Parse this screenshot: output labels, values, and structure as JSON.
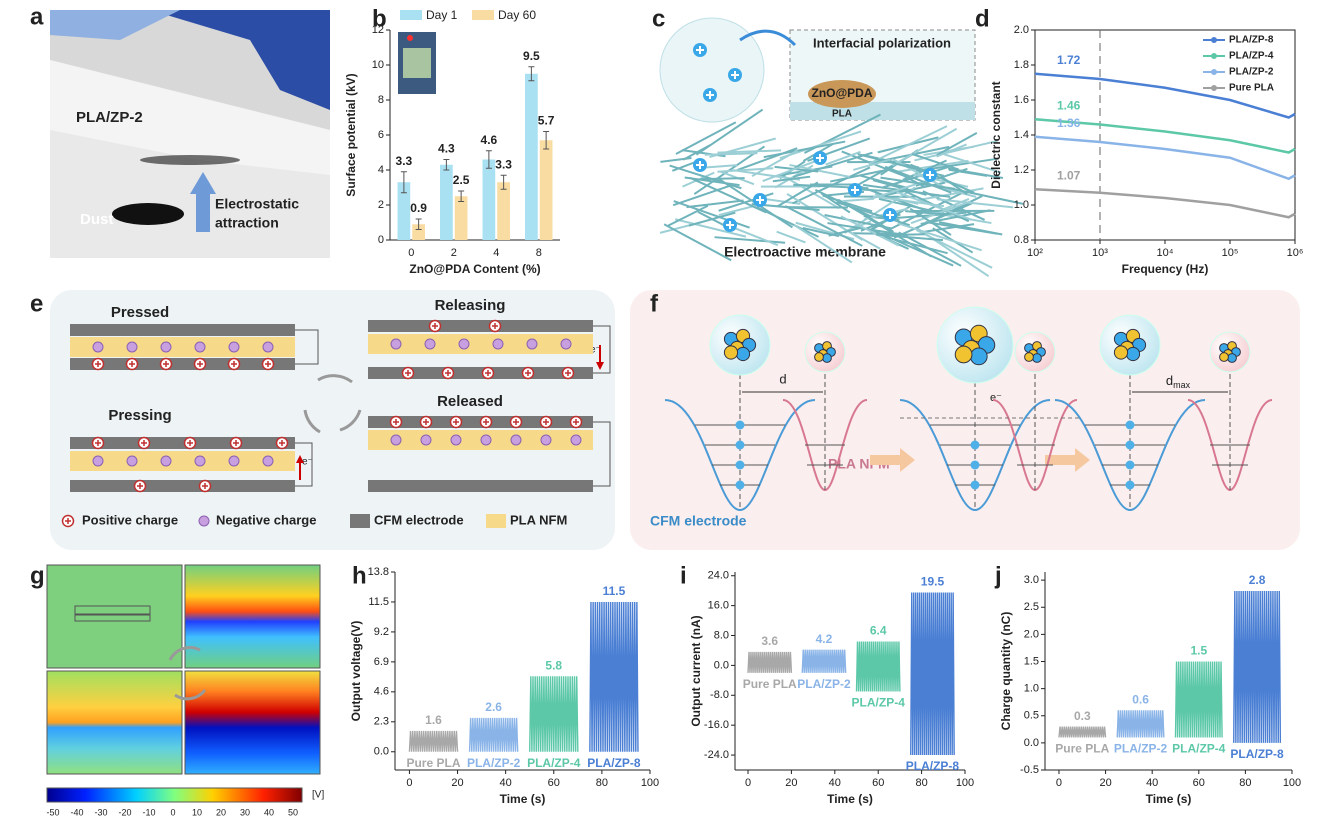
{
  "panel_labels": [
    "a",
    "b",
    "c",
    "d",
    "e",
    "f",
    "g",
    "h",
    "i",
    "j"
  ],
  "photo": {
    "sample": "PLA/ZP-2",
    "arrow_text": [
      "Electrostatic",
      "attraction"
    ],
    "dust": "Dust"
  },
  "membrane": {
    "title": "Interfacial polarization",
    "particle": "ZnO@PDA",
    "matrix": "PLA",
    "caption": "Electroactive membrane"
  },
  "cycle": {
    "states": [
      "Pressed",
      "Releasing",
      "Pressing",
      "Released"
    ],
    "electron": "e⁻",
    "legend": [
      "Positive charge",
      "Negative charge",
      "CFM electrode",
      "PLA NFM"
    ]
  },
  "energy": {
    "distance": "d",
    "distance_max": {
      "base": "d",
      "sub": "max"
    },
    "electron": "e⁻",
    "right_label": "PLA NFM",
    "left_label": "CFM electrode"
  },
  "potential_map": {
    "colorbar_ticks": [
      -50,
      -40,
      -30,
      -20,
      -10,
      0,
      10,
      20,
      30,
      40,
      50
    ],
    "unit": "[V]"
  },
  "chart_data": [
    {
      "type": "bar",
      "categories": [
        "0",
        "2",
        "4",
        "8"
      ],
      "series": [
        {
          "name": "Day 1",
          "color": "#a9e1f2",
          "values": [
            3.3,
            4.3,
            4.6,
            9.5
          ],
          "errors": [
            0.6,
            0.3,
            0.5,
            0.4
          ]
        },
        {
          "name": "Day 60",
          "color": "#f9dca2",
          "values": [
            0.9,
            2.5,
            3.3,
            5.7
          ],
          "errors": [
            0.3,
            0.3,
            0.4,
            0.5
          ]
        }
      ],
      "ylim": [
        0,
        12
      ],
      "yticks": [
        0,
        2,
        4,
        6,
        8,
        10,
        12
      ],
      "xlabel": "ZnO@PDA Content (%)",
      "ylabel": "Surface potential (kV)",
      "legend": "top"
    },
    {
      "type": "line",
      "log_x": true,
      "frame": "box",
      "x": [
        100,
        1000,
        10000,
        100000,
        800000,
        1000000
      ],
      "series": [
        {
          "name": "PLA/ZP-8",
          "color": "#4a7fd4",
          "label": "1.72",
          "values": [
            1.75,
            1.72,
            1.67,
            1.6,
            1.5,
            1.52
          ]
        },
        {
          "name": "PLA/ZP-4",
          "color": "#5cc8a8",
          "label": "1.46",
          "values": [
            1.49,
            1.46,
            1.42,
            1.37,
            1.3,
            1.32
          ]
        },
        {
          "name": "PLA/ZP-2",
          "color": "#8ab4e8",
          "label": "1.36",
          "values": [
            1.39,
            1.36,
            1.32,
            1.27,
            1.15,
            1.17
          ]
        },
        {
          "name": "Pure PLA",
          "color": "#a0a0a0",
          "label": "1.07",
          "values": [
            1.09,
            1.07,
            1.04,
            1.0,
            0.93,
            0.95
          ]
        }
      ],
      "xlim": [
        100,
        1000000
      ],
      "xticks": [
        {
          "value": 100,
          "label": "10²"
        },
        {
          "value": 1000,
          "label": "10³"
        },
        {
          "value": 10000,
          "label": "10⁴"
        },
        {
          "value": 100000,
          "label": "10⁵"
        },
        {
          "value": 1000000,
          "label": "10⁶"
        }
      ],
      "ylim": [
        0.8,
        2.0
      ],
      "yticks": [
        0.8,
        {
          "value": 1.0,
          "label": "1.0"
        },
        1.2,
        1.4,
        1.6,
        1.8,
        {
          "value": 2.0,
          "label": "2.0"
        }
      ],
      "vline": 1000,
      "xlabel": "Frequency (Hz)",
      "ylabel": "Dielectric constant",
      "legend": "upper right"
    },
    {
      "type": "signal",
      "series": [
        {
          "name": "Pure PLA",
          "color": "#a8a8a8",
          "time": [
            0,
            20
          ],
          "peak": 1.6,
          "trough": 0
        },
        {
          "name": "PLA/ZP-2",
          "color": "#8ab4e8",
          "time": [
            25,
            45
          ],
          "peak": 2.6,
          "trough": 0
        },
        {
          "name": "PLA/ZP-4",
          "color": "#5cc8a8",
          "time": [
            50,
            70
          ],
          "peak": 5.8,
          "trough": 0
        },
        {
          "name": "PLA/ZP-8",
          "color": "#4a7fd4",
          "time": [
            75,
            95
          ],
          "peak": 11.5,
          "trough": 0
        }
      ],
      "xlim": [
        -6,
        100
      ],
      "xticks": [
        0,
        20,
        40,
        60,
        80,
        100
      ],
      "ylim": [
        -1.4,
        13.8
      ],
      "yticks": [
        {
          "value": 0,
          "label": "0.0"
        },
        2.3,
        4.6,
        6.9,
        9.2,
        11.5,
        13.8
      ],
      "xlabel": "Time (s)",
      "ylabel": "Output voltage(V)"
    },
    {
      "type": "signal",
      "series": [
        {
          "name": "Pure PLA",
          "color": "#a8a8a8",
          "time": [
            0,
            20
          ],
          "peak": 3.6,
          "trough": -2
        },
        {
          "name": "PLA/ZP-2",
          "color": "#8ab4e8",
          "time": [
            25,
            45
          ],
          "peak": 4.2,
          "trough": -2
        },
        {
          "name": "PLA/ZP-4",
          "color": "#5cc8a8",
          "time": [
            50,
            70
          ],
          "peak": 6.4,
          "trough": -7
        },
        {
          "name": "PLA/ZP-8",
          "color": "#4a7fd4",
          "time": [
            75,
            95
          ],
          "peak": 19.5,
          "trough": -24
        }
      ],
      "xlim": [
        -6,
        100
      ],
      "xticks": [
        0,
        20,
        40,
        60,
        80,
        100
      ],
      "ylim": [
        -28,
        25
      ],
      "yticks": [
        {
          "value": -24,
          "label": "-24.0"
        },
        {
          "value": -16,
          "label": "-16.0"
        },
        {
          "value": -8,
          "label": "-8.0"
        },
        {
          "value": 0,
          "label": "0.0"
        },
        {
          "value": 8,
          "label": "8.0"
        },
        {
          "value": 16,
          "label": "16.0"
        },
        {
          "value": 24,
          "label": "24.0"
        }
      ],
      "xlabel": "Time (s)",
      "ylabel": "Output current (nA)"
    },
    {
      "type": "signal",
      "series": [
        {
          "name": "Pure PLA",
          "color": "#a8a8a8",
          "time": [
            0,
            20
          ],
          "peak": 0.3,
          "trough": 0.1
        },
        {
          "name": "PLA/ZP-2",
          "color": "#8ab4e8",
          "time": [
            25,
            45
          ],
          "peak": 0.6,
          "trough": 0.1
        },
        {
          "name": "PLA/ZP-4",
          "color": "#5cc8a8",
          "time": [
            50,
            70
          ],
          "peak": 1.5,
          "trough": 0.1
        },
        {
          "name": "PLA/ZP-8",
          "color": "#4a7fd4",
          "time": [
            75,
            95
          ],
          "peak": 2.8,
          "trough": 0
        }
      ],
      "xlim": [
        -6,
        100
      ],
      "xticks": [
        0,
        20,
        40,
        60,
        80,
        100
      ],
      "ylim": [
        -0.5,
        3.15
      ],
      "yticks": [
        -0.5,
        {
          "value": 0,
          "label": "0.0"
        },
        0.5,
        {
          "value": 1,
          "label": "1.0"
        },
        1.5,
        {
          "value": 2,
          "label": "2.0"
        },
        2.5,
        {
          "value": 3,
          "label": "3.0"
        }
      ],
      "xlabel": "Time (s)",
      "ylabel": "Charge quantity (nC)"
    }
  ]
}
